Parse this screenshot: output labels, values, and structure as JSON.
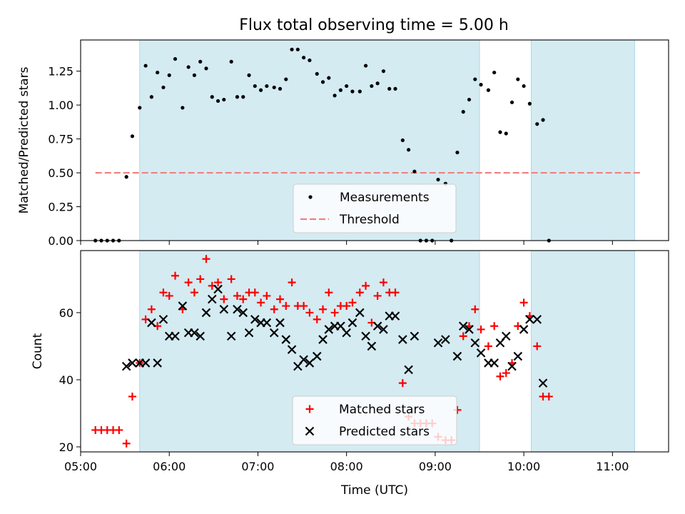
{
  "figure": {
    "title": "Flux total observing time = 5.00 h"
  },
  "chart_data": [
    {
      "type": "scatter",
      "ylabel": "Matched/Predicted stars",
      "xlabel": "",
      "xlim": [
        "05:00",
        "11:38"
      ],
      "ylim": [
        0,
        1.48
      ],
      "y_ticks": [
        "0.00",
        "0.25",
        "0.50",
        "0.75",
        "1.00",
        "1.25"
      ],
      "x_ticks": [
        "05:00",
        "06:00",
        "07:00",
        "08:00",
        "09:00",
        "10:00",
        "11:00"
      ],
      "x_tick_labels_visible": false,
      "shaded_intervals": [
        {
          "start": "05:40",
          "end": "09:30"
        },
        {
          "start": "10:05",
          "end": "11:15"
        }
      ],
      "shade_color": "#add8e6",
      "threshold": {
        "name": "Threshold",
        "value": 0.5,
        "x_start": "05:10",
        "x_end": "11:20",
        "color": "#f08080"
      },
      "series": [
        {
          "name": "Measurements",
          "color": "#000000",
          "marker": "dot",
          "points": [
            [
              "05:10",
              0.0
            ],
            [
              "05:14",
              0.0
            ],
            [
              "05:18",
              0.0
            ],
            [
              "05:22",
              0.0
            ],
            [
              "05:26",
              0.0
            ],
            [
              "05:31",
              0.47
            ],
            [
              "05:35",
              0.77
            ],
            [
              "05:40",
              0.98
            ],
            [
              "05:44",
              1.29
            ],
            [
              "05:48",
              1.06
            ],
            [
              "05:52",
              1.24
            ],
            [
              "05:56",
              1.13
            ],
            [
              "06:00",
              1.22
            ],
            [
              "06:04",
              1.34
            ],
            [
              "06:09",
              0.98
            ],
            [
              "06:13",
              1.28
            ],
            [
              "06:17",
              1.22
            ],
            [
              "06:21",
              1.32
            ],
            [
              "06:25",
              1.27
            ],
            [
              "06:29",
              1.06
            ],
            [
              "06:33",
              1.03
            ],
            [
              "06:37",
              1.04
            ],
            [
              "06:42",
              1.32
            ],
            [
              "06:46",
              1.06
            ],
            [
              "06:50",
              1.06
            ],
            [
              "06:54",
              1.22
            ],
            [
              "06:58",
              1.14
            ],
            [
              "07:02",
              1.11
            ],
            [
              "07:06",
              1.14
            ],
            [
              "07:11",
              1.13
            ],
            [
              "07:15",
              1.12
            ],
            [
              "07:19",
              1.19
            ],
            [
              "07:23",
              1.41
            ],
            [
              "07:27",
              1.41
            ],
            [
              "07:31",
              1.35
            ],
            [
              "07:35",
              1.33
            ],
            [
              "07:40",
              1.23
            ],
            [
              "07:44",
              1.17
            ],
            [
              "07:48",
              1.2
            ],
            [
              "07:52",
              1.07
            ],
            [
              "07:56",
              1.11
            ],
            [
              "08:00",
              1.14
            ],
            [
              "08:04",
              1.1
            ],
            [
              "08:09",
              1.1
            ],
            [
              "08:13",
              1.29
            ],
            [
              "08:17",
              1.14
            ],
            [
              "08:21",
              1.16
            ],
            [
              "08:25",
              1.25
            ],
            [
              "08:29",
              1.12
            ],
            [
              "08:33",
              1.12
            ],
            [
              "08:38",
              0.74
            ],
            [
              "08:42",
              0.67
            ],
            [
              "08:46",
              0.51
            ],
            [
              "08:50",
              0.0
            ],
            [
              "08:54",
              0.0
            ],
            [
              "08:58",
              0.0
            ],
            [
              "09:02",
              0.45
            ],
            [
              "09:07",
              0.42
            ],
            [
              "09:11",
              0.0
            ],
            [
              "09:15",
              0.65
            ],
            [
              "09:19",
              0.95
            ],
            [
              "09:23",
              1.04
            ],
            [
              "09:27",
              1.19
            ],
            [
              "09:31",
              1.15
            ],
            [
              "09:36",
              1.11
            ],
            [
              "09:40",
              1.24
            ],
            [
              "09:44",
              0.8
            ],
            [
              "09:48",
              0.79
            ],
            [
              "09:52",
              1.02
            ],
            [
              "09:56",
              1.19
            ],
            [
              "10:00",
              1.14
            ],
            [
              "10:04",
              1.01
            ],
            [
              "10:09",
              0.86
            ],
            [
              "10:13",
              0.89
            ],
            [
              "10:17",
              0.0
            ]
          ]
        }
      ],
      "legend": {
        "position": "lower-center",
        "entries": [
          "Measurements",
          "Threshold"
        ]
      }
    },
    {
      "type": "scatter",
      "ylabel": "Count",
      "xlabel": "Time (UTC)",
      "xlim": [
        "05:00",
        "11:38"
      ],
      "ylim": [
        18.5,
        78.5
      ],
      "y_ticks": [
        "20",
        "40",
        "60"
      ],
      "x_ticks": [
        "05:00",
        "06:00",
        "07:00",
        "08:00",
        "09:00",
        "10:00",
        "11:00"
      ],
      "x_tick_labels_visible": true,
      "shaded_intervals": [
        {
          "start": "05:40",
          "end": "09:30"
        },
        {
          "start": "10:05",
          "end": "11:15"
        }
      ],
      "shade_color": "#add8e6",
      "series": [
        {
          "name": "Matched stars",
          "color": "#ff0000",
          "marker": "plus",
          "points": [
            [
              "05:10",
              25
            ],
            [
              "05:14",
              25
            ],
            [
              "05:18",
              25
            ],
            [
              "05:22",
              25
            ],
            [
              "05:26",
              25
            ],
            [
              "05:31",
              21
            ],
            [
              "05:35",
              35
            ],
            [
              "05:40",
              45
            ],
            [
              "05:44",
              58
            ],
            [
              "05:48",
              61
            ],
            [
              "05:52",
              56
            ],
            [
              "05:56",
              66
            ],
            [
              "06:00",
              65
            ],
            [
              "06:04",
              71
            ],
            [
              "06:09",
              61
            ],
            [
              "06:13",
              69
            ],
            [
              "06:17",
              66
            ],
            [
              "06:21",
              70
            ],
            [
              "06:25",
              76
            ],
            [
              "06:29",
              68
            ],
            [
              "06:33",
              69
            ],
            [
              "06:37",
              64
            ],
            [
              "06:42",
              70
            ],
            [
              "06:46",
              65
            ],
            [
              "06:50",
              64
            ],
            [
              "06:54",
              66
            ],
            [
              "06:58",
              66
            ],
            [
              "07:02",
              63
            ],
            [
              "07:06",
              65
            ],
            [
              "07:11",
              61
            ],
            [
              "07:15",
              64
            ],
            [
              "07:19",
              62
            ],
            [
              "07:23",
              69
            ],
            [
              "07:27",
              62
            ],
            [
              "07:31",
              62
            ],
            [
              "07:35",
              60
            ],
            [
              "07:40",
              58
            ],
            [
              "07:44",
              61
            ],
            [
              "07:48",
              66
            ],
            [
              "07:52",
              60
            ],
            [
              "07:56",
              62
            ],
            [
              "08:00",
              62
            ],
            [
              "08:04",
              63
            ],
            [
              "08:09",
              66
            ],
            [
              "08:13",
              68
            ],
            [
              "08:17",
              57
            ],
            [
              "08:21",
              65
            ],
            [
              "08:25",
              69
            ],
            [
              "08:29",
              66
            ],
            [
              "08:33",
              66
            ],
            [
              "08:38",
              39
            ],
            [
              "08:42",
              29
            ],
            [
              "08:46",
              27
            ],
            [
              "08:50",
              27
            ],
            [
              "08:54",
              27
            ],
            [
              "08:58",
              27
            ],
            [
              "09:02",
              23
            ],
            [
              "09:07",
              22
            ],
            [
              "09:11",
              22
            ],
            [
              "09:15",
              31
            ],
            [
              "09:19",
              53
            ],
            [
              "09:23",
              56
            ],
            [
              "09:27",
              61
            ],
            [
              "09:31",
              55
            ],
            [
              "09:36",
              50
            ],
            [
              "09:40",
              56
            ],
            [
              "09:44",
              41
            ],
            [
              "09:48",
              42
            ],
            [
              "09:52",
              45
            ],
            [
              "09:56",
              56
            ],
            [
              "10:00",
              63
            ],
            [
              "10:04",
              59
            ],
            [
              "10:09",
              50
            ],
            [
              "10:13",
              35
            ],
            [
              "10:17",
              35
            ]
          ]
        },
        {
          "name": "Predicted stars",
          "color": "#000000",
          "marker": "x",
          "points": [
            [
              "05:31",
              44
            ],
            [
              "05:35",
              45
            ],
            [
              "05:40",
              45
            ],
            [
              "05:44",
              45
            ],
            [
              "05:48",
              57
            ],
            [
              "05:52",
              45
            ],
            [
              "05:56",
              58
            ],
            [
              "06:00",
              53
            ],
            [
              "06:04",
              53
            ],
            [
              "06:09",
              62
            ],
            [
              "06:13",
              54
            ],
            [
              "06:17",
              54
            ],
            [
              "06:21",
              53
            ],
            [
              "06:25",
              60
            ],
            [
              "06:29",
              64
            ],
            [
              "06:33",
              67
            ],
            [
              "06:37",
              61
            ],
            [
              "06:42",
              53
            ],
            [
              "06:46",
              61
            ],
            [
              "06:50",
              60
            ],
            [
              "06:54",
              54
            ],
            [
              "06:58",
              58
            ],
            [
              "07:02",
              57
            ],
            [
              "07:06",
              57
            ],
            [
              "07:11",
              54
            ],
            [
              "07:15",
              57
            ],
            [
              "07:19",
              52
            ],
            [
              "07:23",
              49
            ],
            [
              "07:27",
              44
            ],
            [
              "07:31",
              46
            ],
            [
              "07:35",
              45
            ],
            [
              "07:40",
              47
            ],
            [
              "07:44",
              52
            ],
            [
              "07:48",
              55
            ],
            [
              "07:52",
              56
            ],
            [
              "07:56",
              56
            ],
            [
              "08:00",
              54
            ],
            [
              "08:04",
              57
            ],
            [
              "08:09",
              60
            ],
            [
              "08:13",
              53
            ],
            [
              "08:17",
              50
            ],
            [
              "08:21",
              56
            ],
            [
              "08:25",
              55
            ],
            [
              "08:29",
              59
            ],
            [
              "08:33",
              59
            ],
            [
              "08:38",
              52
            ],
            [
              "08:42",
              43
            ],
            [
              "08:46",
              53
            ],
            [
              "09:02",
              51
            ],
            [
              "09:07",
              52
            ],
            [
              "09:15",
              47
            ],
            [
              "09:19",
              56
            ],
            [
              "09:23",
              55
            ],
            [
              "09:27",
              51
            ],
            [
              "09:31",
              48
            ],
            [
              "09:36",
              45
            ],
            [
              "09:40",
              45
            ],
            [
              "09:44",
              51
            ],
            [
              "09:48",
              53
            ],
            [
              "09:52",
              44
            ],
            [
              "09:56",
              47
            ],
            [
              "10:00",
              55
            ],
            [
              "10:04",
              58
            ],
            [
              "10:09",
              58
            ],
            [
              "10:13",
              39
            ]
          ]
        }
      ],
      "legend": {
        "position": "lower-center",
        "entries": [
          "Matched stars",
          "Predicted stars"
        ]
      }
    }
  ]
}
